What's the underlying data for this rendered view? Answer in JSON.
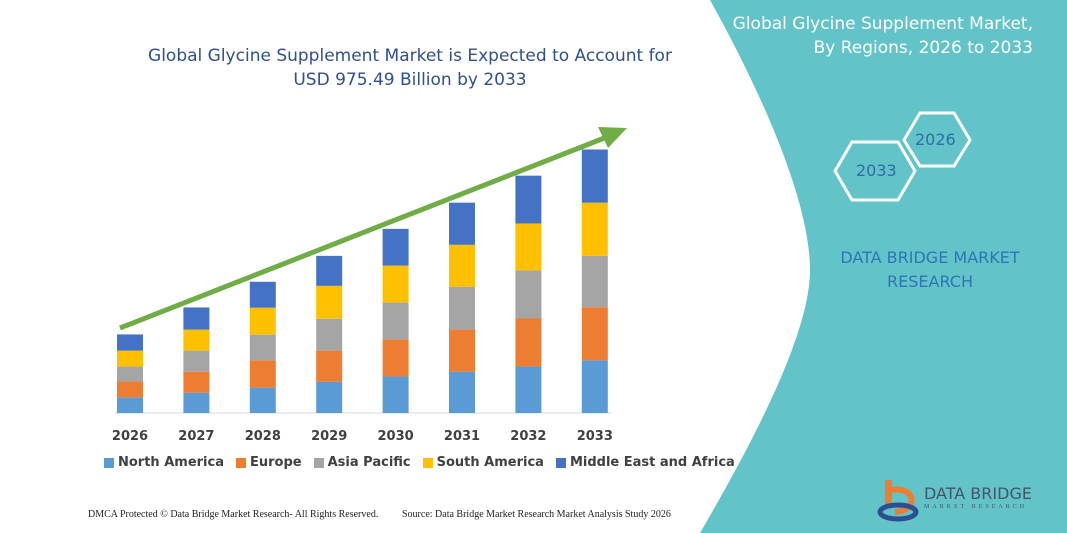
{
  "header": {
    "title_line1": "Global Glycine Supplement Market is Expected to Account for",
    "title_line2": "USD 975.49 Billion by 2033"
  },
  "side_panel": {
    "title_line1": "Global Glycine Supplement Market,",
    "title_line2": "By Regions, 2026 to 2033",
    "hex_start": "2026",
    "hex_end": "2033",
    "brand_line1": "DATA BRIDGE MARKET",
    "brand_line2": "RESEARCH",
    "logo_text": "DATA BRIDGE",
    "logo_sub": "MARKET RESEARCH",
    "panel_color": "#62c4c8"
  },
  "footer": {
    "left": "DMCA Protected © Data Bridge Market Research-  All Rights Reserved.",
    "right": "Source: Data Bridge Market Research  Market Analysis Study 2026"
  },
  "chart_data": {
    "type": "bar",
    "stacked": true,
    "categories": [
      "2026",
      "2027",
      "2028",
      "2029",
      "2030",
      "2031",
      "2032",
      "2033"
    ],
    "series": [
      {
        "name": "North America",
        "color": "#5b9bd5",
        "values": [
          58,
          75,
          94,
          116,
          135,
          153,
          172,
          195
        ]
      },
      {
        "name": "Europe",
        "color": "#ed7d31",
        "values": [
          59,
          78,
          101,
          115,
          137,
          156,
          178,
          197
        ]
      },
      {
        "name": "Asia Pacific",
        "color": "#a5a5a5",
        "values": [
          55,
          78,
          95,
          118,
          137,
          158,
          178,
          190
        ]
      },
      {
        "name": "South America",
        "color": "#ffc000",
        "values": [
          59,
          78,
          100,
          122,
          137,
          156,
          174,
          197
        ]
      },
      {
        "name": "Middle East and Africa",
        "color": "#4472c4",
        "values": [
          60,
          82,
          96,
          111,
          136,
          156,
          177,
          197
        ]
      }
    ],
    "ylim": [
      0,
      1000
    ],
    "y_axis_visible": false,
    "grid": false,
    "legend_position": "bottom",
    "trend_arrow_color": "#70ad47"
  }
}
